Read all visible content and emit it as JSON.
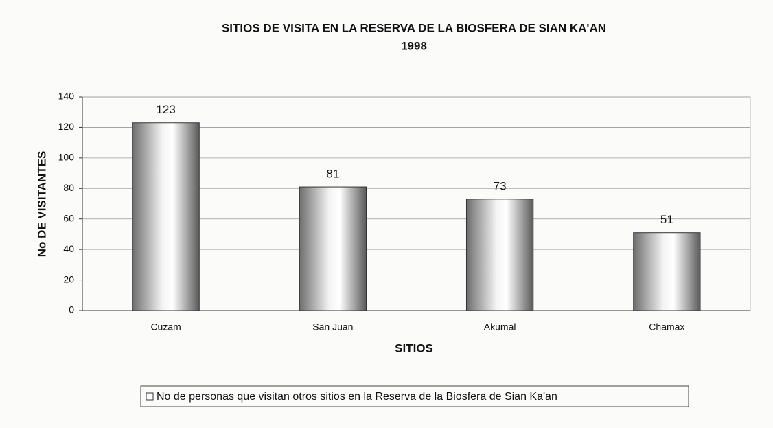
{
  "chart_data": {
    "type": "bar",
    "title": "SITIOS DE VISITA EN LA RESERVA DE LA BIOSFERA DE SIAN KA'AN",
    "subtitle": "1998",
    "x_label": "SITIOS",
    "y_label": "No DE VISITANTES",
    "categories": [
      "Cuzam",
      "San Juan",
      "Akumal",
      "Chamax"
    ],
    "series": [
      {
        "name": "No de personas que visitan otros sitios en la Reserva de la Biosfera de Sian Ka'an",
        "color": "#9a9a9a",
        "values": [
          123,
          81,
          73,
          51
        ]
      }
    ],
    "ylim": [
      0,
      140
    ],
    "yticks": [
      0,
      20,
      40,
      60,
      80,
      100,
      120,
      140
    ],
    "grid": true,
    "legend": "bottom"
  }
}
